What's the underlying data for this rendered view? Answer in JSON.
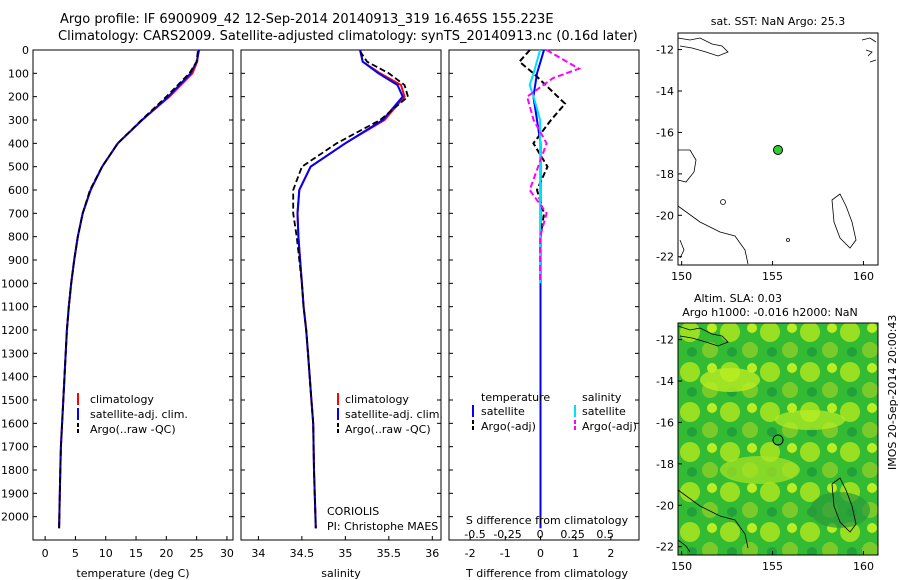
{
  "title": {
    "line1": "Argo profile: IF 6900909_42 12-Sep-2014 20140913_319 16.465S 155.223E",
    "line2": "Climatology: CARS2009. Satellite-adjusted climatology: synTS_20140913.nc (0.16d later)"
  },
  "colors": {
    "climatology": "#ff0000",
    "satellite": "#0000ff",
    "argo": "#000000",
    "salinity_satellite": "#00e0ff",
    "salinity_argo": "#ff00ff",
    "ssh_map": "#33cc33",
    "ssh_map_hi": "#aaee22"
  },
  "depth_ticks": [
    "0",
    "100",
    "200",
    "300",
    "400",
    "500",
    "600",
    "700",
    "800",
    "900",
    "1000",
    "1100",
    "1200",
    "1300",
    "1400",
    "1500",
    "1600",
    "1700",
    "1800",
    "1900",
    "2000"
  ],
  "panel_temp": {
    "xlabel": "temperature (deg C)",
    "xticks": [
      "0",
      "5",
      "10",
      "15",
      "20",
      "25",
      "30"
    ],
    "legend": [
      "climatology",
      "satellite-adj. clim.",
      "Argo(..raw -QC)"
    ]
  },
  "panel_sal": {
    "xlabel": "salinity",
    "xticks": [
      "34",
      "34.5",
      "35",
      "35.5",
      "36"
    ],
    "legend": [
      "climatology",
      "satellite-adj. clim.",
      "Argo(..raw -QC)"
    ],
    "credit1": "CORIOLIS",
    "credit2": "PI: Christophe MAES"
  },
  "panel_diff": {
    "xlabel": "T difference from climatology",
    "toplabel": "S difference from climatology",
    "top_ticks": [
      "-0.5",
      "-0.25",
      "0",
      "0.25",
      "0.5"
    ],
    "bottom_ticks": [
      "-2",
      "-1",
      "0",
      "1",
      "2"
    ],
    "legend_temp_head": "temperature",
    "legend_sal_head": "salinity",
    "legend_temp": [
      "satellite",
      "Argo(-adj)"
    ],
    "legend_sal": [
      "satellite",
      "Argo(-adj)"
    ]
  },
  "map_sst": {
    "title": "sat. SST: NaN Argo: 25.3",
    "yticks": [
      "-12",
      "-14",
      "-16",
      "-18",
      "-20",
      "-22"
    ],
    "xticks": [
      "150",
      "155",
      "160"
    ]
  },
  "map_sla": {
    "title1": "Altim. SLA: 0.03",
    "title2": "Argo h1000: -0.016 h2000: NaN",
    "yticks": [
      "-12",
      "-14",
      "-16",
      "-18",
      "-20",
      "-22"
    ],
    "xticks": [
      "150",
      "155",
      "160"
    ]
  },
  "stamp": "IMOS 20-Sep-2014 20:00:43",
  "chart_data": [
    {
      "type": "line",
      "xlabel": "temperature (deg C)",
      "ylabel": "",
      "xlim": [
        -2,
        31
      ],
      "ylim": [
        2100,
        0
      ],
      "series": [
        {
          "name": "climatology",
          "x": [
            25.3,
            25.1,
            24.3,
            20.5,
            16,
            12,
            9.4,
            7.5,
            6.2,
            5.4,
            4.8,
            4.3,
            3.9,
            3.6,
            3.4,
            3.2,
            3.0,
            2.8,
            2.6,
            2.5,
            2.3
          ],
          "y": [
            0,
            50,
            100,
            200,
            300,
            400,
            500,
            600,
            700,
            800,
            900,
            1000,
            1100,
            1200,
            1300,
            1400,
            1500,
            1600,
            1700,
            1800,
            2050
          ]
        },
        {
          "name": "satellite-adj. clim.",
          "x": [
            25.4,
            25.0,
            24.0,
            20.3,
            16,
            12,
            9.4,
            7.5,
            6.2,
            5.4,
            4.8,
            4.3,
            3.9,
            3.6,
            3.4,
            3.2,
            3.0,
            2.8,
            2.6,
            2.5,
            2.3
          ],
          "y": [
            0,
            50,
            100,
            200,
            300,
            400,
            500,
            600,
            700,
            800,
            900,
            1000,
            1100,
            1200,
            1300,
            1400,
            1500,
            1600,
            1700,
            1800,
            2050
          ]
        },
        {
          "name": "Argo(..raw -QC)",
          "x": [
            25.2,
            25.0,
            23.8,
            20.0,
            15.9,
            12,
            9.4,
            7.4,
            6.2,
            5.4,
            4.8,
            4.3,
            3.9,
            3.6,
            3.4,
            3.2,
            3.0,
            2.8,
            2.6,
            2.5,
            2.3
          ],
          "y": [
            5,
            50,
            100,
            200,
            300,
            400,
            500,
            600,
            700,
            800,
            900,
            1000,
            1100,
            1200,
            1300,
            1400,
            1500,
            1600,
            1700,
            1800,
            2050
          ]
        }
      ]
    },
    {
      "type": "line",
      "xlabel": "salinity",
      "ylabel": "",
      "xlim": [
        33.8,
        36.1
      ],
      "ylim": [
        2100,
        0
      ],
      "series": [
        {
          "name": "climatology",
          "x": [
            35.17,
            35.2,
            35.4,
            35.64,
            35.68,
            35.45,
            35.0,
            34.6,
            34.47,
            34.45,
            34.46,
            34.48,
            34.5,
            34.52,
            34.55,
            34.57,
            34.59,
            34.61,
            34.63,
            34.64,
            34.66
          ],
          "y": [
            0,
            50,
            100,
            150,
            200,
            300,
            400,
            500,
            600,
            700,
            800,
            900,
            1000,
            1100,
            1200,
            1300,
            1400,
            1500,
            1600,
            1800,
            2050
          ]
        },
        {
          "name": "satellite-adj. clim.",
          "x": [
            35.17,
            35.2,
            35.38,
            35.6,
            35.66,
            35.43,
            35.0,
            34.6,
            34.47,
            34.45,
            34.46,
            34.48,
            34.5,
            34.52,
            34.55,
            34.57,
            34.59,
            34.61,
            34.63,
            34.64,
            34.66
          ],
          "y": [
            0,
            50,
            100,
            150,
            200,
            300,
            400,
            500,
            600,
            700,
            800,
            900,
            1000,
            1100,
            1200,
            1300,
            1400,
            1500,
            1600,
            1800,
            2050
          ]
        },
        {
          "name": "Argo(..raw -QC)",
          "x": [
            35.17,
            35.25,
            35.5,
            35.68,
            35.72,
            35.4,
            34.9,
            34.5,
            34.4,
            34.4,
            34.44,
            34.47,
            34.5,
            34.52,
            34.55,
            34.57,
            34.59,
            34.61,
            34.63,
            34.64,
            34.66
          ],
          "y": [
            5,
            50,
            100,
            150,
            200,
            300,
            400,
            500,
            600,
            700,
            800,
            900,
            1000,
            1100,
            1200,
            1300,
            1400,
            1500,
            1600,
            1800,
            2050
          ]
        }
      ]
    },
    {
      "type": "line",
      "xlabel": "T difference from climatology",
      "x2label": "S difference from climatology",
      "xlim": [
        -2.6,
        2.8
      ],
      "ylim": [
        2100,
        0
      ],
      "series": [
        {
          "name": "satellite",
          "axis": "T",
          "x": [
            0.1,
            0.0,
            -0.1,
            -0.2,
            -0.1,
            0.0,
            0.0,
            0.0,
            0.0,
            0.0,
            0.0,
            0.0
          ],
          "y": [
            0,
            50,
            100,
            200,
            300,
            400,
            500,
            600,
            800,
            1000,
            1500,
            2050
          ]
        },
        {
          "name": "Argo(-adj)",
          "axis": "T",
          "x": [
            -0.3,
            -0.6,
            -0.2,
            0.7,
            0.3,
            -0.2,
            0.2,
            -0.1,
            0.1,
            0.0,
            0.0,
            0.0
          ],
          "y": [
            0,
            50,
            100,
            230,
            300,
            400,
            500,
            600,
            700,
            800,
            900,
            1000
          ]
        },
        {
          "name": "satellite",
          "axis": "S",
          "x": [
            0.0,
            -0.05,
            -0.08,
            -0.05,
            0.0,
            0.0,
            0.0,
            0.0
          ],
          "y": [
            0,
            100,
            150,
            200,
            300,
            500,
            800,
            1000
          ]
        },
        {
          "name": "Argo(-adj)",
          "axis": "S",
          "x": [
            0.05,
            0.3,
            0.1,
            -0.1,
            -0.05,
            0.05,
            -0.08,
            0.05,
            0.0,
            0.0
          ],
          "y": [
            0,
            80,
            120,
            200,
            300,
            400,
            600,
            700,
            800,
            1000
          ]
        }
      ]
    }
  ]
}
